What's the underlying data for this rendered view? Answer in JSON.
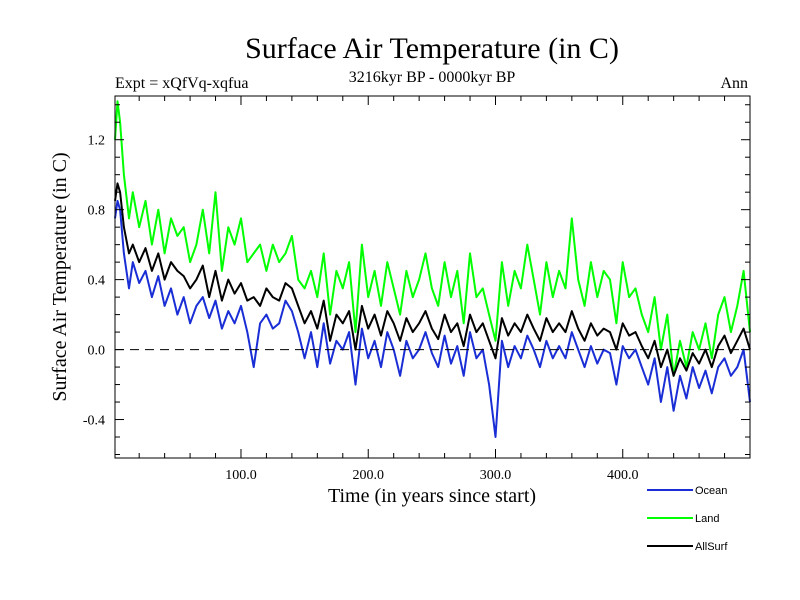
{
  "chart_data": {
    "type": "line",
    "title": "Surface Air Temperature (in C)",
    "subtitle_left": "Expt = xQfVq-xqfua",
    "subtitle_center": "3216kyr BP - 0000kyr BP",
    "subtitle_right": "Ann",
    "xlabel": "Time (in years since start)",
    "ylabel": "Surface Air Temperature (in C)",
    "xlim": [
      1,
      500
    ],
    "ylim": [
      -0.62,
      1.45
    ],
    "x_ticks": [
      {
        "value": 100,
        "label": "100.0"
      },
      {
        "value": 200,
        "label": "200.0"
      },
      {
        "value": 300,
        "label": "300.0"
      },
      {
        "value": 400,
        "label": "400.0"
      }
    ],
    "y_ticks": [
      {
        "value": -0.4,
        "label": "-0.4"
      },
      {
        "value": 0.0,
        "label": "0.0"
      },
      {
        "value": 0.4,
        "label": "0.4"
      },
      {
        "value": 0.8,
        "label": "0.8"
      },
      {
        "value": 1.2,
        "label": "1.2"
      }
    ],
    "zero_line": 0.0,
    "legend_position": "bottom-right",
    "series": [
      {
        "name": "Land",
        "legend_label": "Land",
        "color": "#00ff00",
        "x": [
          1,
          3,
          5,
          8,
          12,
          15,
          20,
          25,
          30,
          35,
          40,
          45,
          50,
          55,
          60,
          65,
          70,
          75,
          80,
          85,
          90,
          95,
          100,
          105,
          110,
          115,
          120,
          125,
          130,
          135,
          140,
          145,
          150,
          155,
          160,
          165,
          170,
          175,
          180,
          185,
          190,
          195,
          200,
          205,
          210,
          215,
          220,
          225,
          230,
          235,
          240,
          245,
          250,
          255,
          260,
          265,
          270,
          275,
          280,
          285,
          290,
          295,
          300,
          305,
          310,
          315,
          320,
          325,
          330,
          335,
          340,
          345,
          350,
          355,
          360,
          365,
          370,
          375,
          380,
          385,
          390,
          395,
          400,
          405,
          410,
          415,
          420,
          425,
          430,
          435,
          440,
          445,
          450,
          455,
          460,
          465,
          470,
          475,
          480,
          485,
          490,
          495,
          500
        ],
        "values": [
          1.2,
          1.42,
          1.3,
          1.0,
          0.75,
          0.9,
          0.7,
          0.85,
          0.6,
          0.8,
          0.55,
          0.75,
          0.65,
          0.7,
          0.5,
          0.6,
          0.8,
          0.55,
          0.9,
          0.45,
          0.7,
          0.6,
          0.75,
          0.5,
          0.55,
          0.6,
          0.45,
          0.6,
          0.5,
          0.55,
          0.65,
          0.4,
          0.35,
          0.45,
          0.3,
          0.55,
          0.2,
          0.45,
          0.35,
          0.5,
          0.1,
          0.6,
          0.3,
          0.45,
          0.25,
          0.5,
          0.35,
          0.2,
          0.45,
          0.3,
          0.4,
          0.55,
          0.35,
          0.25,
          0.5,
          0.3,
          0.45,
          0.15,
          0.55,
          0.3,
          0.35,
          0.2,
          0.05,
          0.5,
          0.25,
          0.45,
          0.35,
          0.6,
          0.4,
          0.2,
          0.5,
          0.3,
          0.45,
          0.35,
          0.75,
          0.4,
          0.25,
          0.5,
          0.3,
          0.45,
          0.4,
          0.15,
          0.5,
          0.3,
          0.35,
          0.2,
          0.1,
          0.3,
          0.0,
          0.2,
          -0.15,
          0.05,
          -0.1,
          0.1,
          0.0,
          0.15,
          -0.05,
          0.2,
          0.3,
          0.1,
          0.25,
          0.45,
          0.1
        ]
      },
      {
        "name": "AllSurf",
        "legend_label": "AllSurf",
        "color": "#000000",
        "x": [
          1,
          3,
          5,
          8,
          12,
          15,
          20,
          25,
          30,
          35,
          40,
          45,
          50,
          55,
          60,
          65,
          70,
          75,
          80,
          85,
          90,
          95,
          100,
          105,
          110,
          115,
          120,
          125,
          130,
          135,
          140,
          145,
          150,
          155,
          160,
          165,
          170,
          175,
          180,
          185,
          190,
          195,
          200,
          205,
          210,
          215,
          220,
          225,
          230,
          235,
          240,
          245,
          250,
          255,
          260,
          265,
          270,
          275,
          280,
          285,
          290,
          295,
          300,
          305,
          310,
          315,
          320,
          325,
          330,
          335,
          340,
          345,
          350,
          355,
          360,
          365,
          370,
          375,
          380,
          385,
          390,
          395,
          400,
          405,
          410,
          415,
          420,
          425,
          430,
          435,
          440,
          445,
          450,
          455,
          460,
          465,
          470,
          475,
          480,
          485,
          490,
          495,
          500
        ],
        "values": [
          0.85,
          0.95,
          0.9,
          0.7,
          0.55,
          0.6,
          0.5,
          0.58,
          0.45,
          0.55,
          0.4,
          0.5,
          0.45,
          0.42,
          0.35,
          0.4,
          0.48,
          0.3,
          0.45,
          0.28,
          0.4,
          0.32,
          0.38,
          0.28,
          0.3,
          0.25,
          0.35,
          0.3,
          0.28,
          0.38,
          0.35,
          0.25,
          0.15,
          0.22,
          0.12,
          0.28,
          0.05,
          0.2,
          0.15,
          0.22,
          0.0,
          0.25,
          0.12,
          0.2,
          0.08,
          0.22,
          0.15,
          0.05,
          0.18,
          0.1,
          0.15,
          0.22,
          0.12,
          0.06,
          0.2,
          0.1,
          0.15,
          0.02,
          0.2,
          0.1,
          0.15,
          0.05,
          -0.05,
          0.18,
          0.08,
          0.15,
          0.1,
          0.2,
          0.12,
          0.05,
          0.18,
          0.1,
          0.15,
          0.1,
          0.22,
          0.12,
          0.05,
          0.15,
          0.08,
          0.12,
          0.1,
          0.0,
          0.15,
          0.08,
          0.1,
          0.02,
          -0.05,
          0.05,
          -0.1,
          0.0,
          -0.15,
          -0.05,
          -0.12,
          -0.02,
          -0.08,
          0.0,
          -0.1,
          0.02,
          0.08,
          -0.02,
          0.05,
          0.12,
          0.0
        ]
      },
      {
        "name": "Ocean",
        "legend_label": "Ocean",
        "color": "#1a2ed6",
        "x": [
          1,
          3,
          5,
          8,
          12,
          15,
          20,
          25,
          30,
          35,
          40,
          45,
          50,
          55,
          60,
          65,
          70,
          75,
          80,
          85,
          90,
          95,
          100,
          105,
          110,
          115,
          120,
          125,
          130,
          135,
          140,
          145,
          150,
          155,
          160,
          165,
          170,
          175,
          180,
          185,
          190,
          195,
          200,
          205,
          210,
          215,
          220,
          225,
          230,
          235,
          240,
          245,
          250,
          255,
          260,
          265,
          270,
          275,
          280,
          285,
          290,
          295,
          300,
          305,
          310,
          315,
          320,
          325,
          330,
          335,
          340,
          345,
          350,
          355,
          360,
          365,
          370,
          375,
          380,
          385,
          390,
          395,
          400,
          405,
          410,
          415,
          420,
          425,
          430,
          435,
          440,
          445,
          450,
          455,
          460,
          465,
          470,
          475,
          480,
          485,
          490,
          495,
          500
        ],
        "values": [
          0.75,
          0.85,
          0.8,
          0.55,
          0.35,
          0.5,
          0.38,
          0.45,
          0.3,
          0.42,
          0.25,
          0.35,
          0.2,
          0.3,
          0.15,
          0.25,
          0.3,
          0.18,
          0.28,
          0.12,
          0.22,
          0.15,
          0.25,
          0.1,
          -0.1,
          0.15,
          0.2,
          0.12,
          0.15,
          0.28,
          0.22,
          0.1,
          -0.05,
          0.1,
          -0.1,
          0.15,
          -0.08,
          0.05,
          0.0,
          0.1,
          -0.2,
          0.12,
          -0.05,
          0.05,
          -0.1,
          0.1,
          0.0,
          -0.15,
          0.05,
          -0.05,
          0.0,
          0.1,
          -0.02,
          -0.1,
          0.08,
          -0.08,
          0.02,
          -0.15,
          0.1,
          -0.05,
          0.0,
          -0.2,
          -0.5,
          0.05,
          -0.1,
          0.02,
          -0.05,
          0.08,
          0.0,
          -0.1,
          0.05,
          -0.05,
          0.02,
          -0.05,
          0.1,
          0.0,
          -0.1,
          0.02,
          -0.08,
          0.0,
          -0.02,
          -0.2,
          0.02,
          -0.05,
          0.0,
          -0.1,
          -0.2,
          -0.05,
          -0.3,
          -0.1,
          -0.35,
          -0.15,
          -0.28,
          -0.1,
          -0.22,
          -0.12,
          -0.25,
          -0.1,
          -0.05,
          -0.15,
          -0.1,
          0.0,
          -0.3
        ]
      }
    ]
  }
}
